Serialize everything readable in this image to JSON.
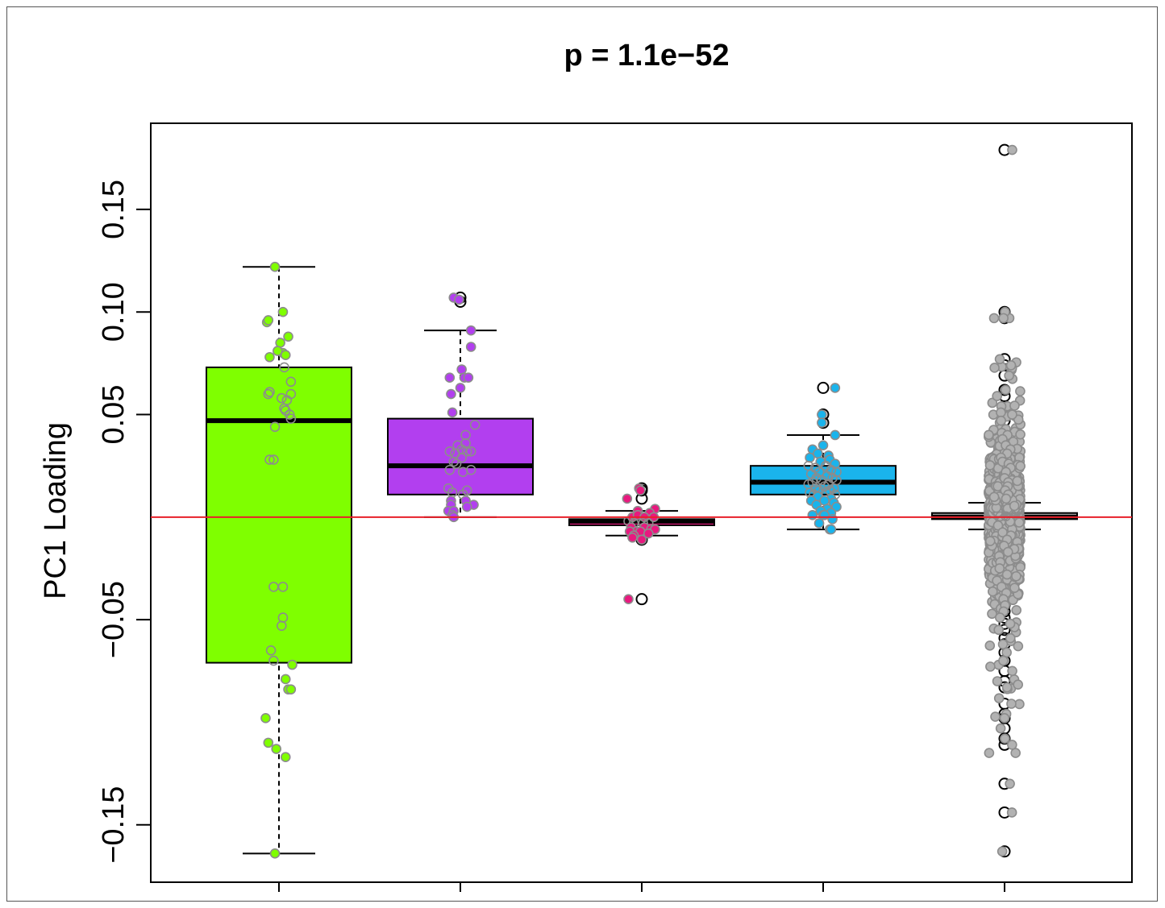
{
  "chart_data": {
    "type": "box",
    "title": "p = 1.1e−52",
    "xlabel": "",
    "ylabel": "PC1 Loading",
    "ylim": [
      -0.178,
      0.192
    ],
    "yticks": [
      0.15,
      0.1,
      0.05,
      -0.05,
      -0.15
    ],
    "ytick_labels": [
      "0.15",
      "0.10",
      "0.05",
      "−0.05",
      "−0.15"
    ],
    "reference_line": {
      "y": 0.0,
      "color": "#e8202a"
    },
    "grid": false,
    "legend": "none",
    "groups": [
      {
        "color": "#7fff00",
        "point_color": "#7fff00",
        "box": {
          "q1": -0.071,
          "median": 0.047,
          "q3": 0.073,
          "whisker_low": -0.164,
          "whisker_high": 0.122
        },
        "outliers": [],
        "points": [
          [
            -0.003,
            0.122
          ],
          [
            -0.009,
            0.095
          ],
          [
            -0.008,
            0.096
          ],
          [
            0.003,
            0.1
          ],
          [
            0.001,
            0.085
          ],
          [
            0.007,
            0.088
          ],
          [
            -0.007,
            0.078
          ],
          [
            0.003,
            0.08
          ],
          [
            -0.001,
            0.081
          ],
          [
            0.005,
            0.079
          ],
          [
            0.004,
            0.073
          ],
          [
            -0.007,
            0.061
          ],
          [
            -0.008,
            0.06
          ],
          [
            0.009,
            0.066
          ],
          [
            0.002,
            0.058
          ],
          [
            0.009,
            0.06
          ],
          [
            0.006,
            0.057
          ],
          [
            0.004,
            0.053
          ],
          [
            0.005,
            0.052
          ],
          [
            0.008,
            0.05
          ],
          [
            0.009,
            0.048
          ],
          [
            -0.003,
            0.044
          ],
          [
            -0.007,
            0.028
          ],
          [
            -0.004,
            0.028
          ],
          [
            -0.004,
            -0.034
          ],
          [
            0.003,
            -0.034
          ],
          [
            0.003,
            -0.049
          ],
          [
            0.002,
            -0.053
          ],
          [
            -0.006,
            -0.065
          ],
          [
            -0.004,
            -0.07
          ],
          [
            0.01,
            -0.072
          ],
          [
            0.005,
            -0.079
          ],
          [
            0.007,
            -0.084
          ],
          [
            0.009,
            -0.084
          ],
          [
            -0.01,
            -0.098
          ],
          [
            -0.008,
            -0.11
          ],
          [
            -0.002,
            -0.113
          ],
          [
            0.005,
            -0.117
          ],
          [
            -0.003,
            -0.164
          ]
        ]
      },
      {
        "color": "#b23fef",
        "point_color": "#b23fef",
        "box": {
          "q1": 0.011,
          "median": 0.025,
          "q3": 0.048,
          "whisker_low": 0.0,
          "whisker_high": 0.091
        },
        "outliers": [
          0.107,
          0.105
        ],
        "points": [
          [
            -0.005,
            0.107
          ],
          [
            -0.001,
            0.106
          ],
          [
            0.008,
            0.091
          ],
          [
            0.008,
            0.083
          ],
          [
            0.001,
            0.072
          ],
          [
            -0.008,
            0.068
          ],
          [
            0.003,
            0.068
          ],
          [
            0.006,
            0.068
          ],
          [
            -0.007,
            0.06
          ],
          [
            0.0,
            0.063
          ],
          [
            -0.006,
            0.051
          ],
          [
            0.011,
            0.045
          ],
          [
            0.004,
            0.04
          ],
          [
            0.004,
            0.036
          ],
          [
            -0.002,
            0.035
          ],
          [
            0.001,
            0.033
          ],
          [
            -0.008,
            0.032
          ],
          [
            0.008,
            0.032
          ],
          [
            0.005,
            0.032
          ],
          [
            -0.004,
            0.031
          ],
          [
            0.001,
            0.029
          ],
          [
            -0.005,
            0.027
          ],
          [
            -0.003,
            0.026
          ],
          [
            0.008,
            0.023
          ],
          [
            -0.008,
            0.023
          ],
          [
            0.002,
            0.022
          ],
          [
            -0.009,
            0.014
          ],
          [
            0.005,
            0.013
          ],
          [
            -0.006,
            0.012
          ],
          [
            0.002,
            0.011
          ],
          [
            -0.007,
            0.008
          ],
          [
            0.004,
            0.008
          ],
          [
            -0.007,
            0.006
          ],
          [
            0.01,
            0.006
          ],
          [
            0.005,
            0.005
          ],
          [
            -0.009,
            0.003
          ],
          [
            -0.005,
            0.003
          ],
          [
            -0.006,
            0.001
          ],
          [
            -0.005,
            0.0
          ]
        ]
      },
      {
        "color": "#e8197f",
        "point_color": "#e8197f",
        "box": {
          "q1": -0.004,
          "median": -0.002,
          "q3": -0.001,
          "whisker_low": -0.009,
          "whisker_high": 0.003
        },
        "outliers": [
          0.014,
          0.013,
          0.009,
          -0.011,
          -0.04
        ],
        "points": [
          [
            -0.002,
            0.014
          ],
          [
            -0.001,
            0.013
          ],
          [
            -0.011,
            0.009
          ],
          [
            -0.003,
            0.003
          ],
          [
            0.01,
            0.004
          ],
          [
            0.006,
            0.002
          ],
          [
            -0.007,
            0.0
          ],
          [
            -0.003,
            0.001
          ],
          [
            0.002,
            0.0
          ],
          [
            0.009,
            0.0
          ],
          [
            -0.01,
            -0.002
          ],
          [
            -0.006,
            -0.003
          ],
          [
            0.001,
            -0.003
          ],
          [
            0.005,
            -0.003
          ],
          [
            -0.008,
            -0.005
          ],
          [
            0.002,
            -0.005
          ],
          [
            0.007,
            -0.006
          ],
          [
            -0.004,
            -0.007
          ],
          [
            0.01,
            -0.006
          ],
          [
            -0.009,
            -0.007
          ],
          [
            -0.001,
            -0.007
          ],
          [
            0.005,
            -0.008
          ],
          [
            -0.006,
            -0.009
          ],
          [
            -0.007,
            -0.01
          ],
          [
            0.0,
            -0.011
          ],
          [
            -0.01,
            -0.04
          ]
        ]
      },
      {
        "color": "#1ab4ec",
        "point_color": "#1ab4ec",
        "box": {
          "q1": 0.011,
          "median": 0.017,
          "q3": 0.025,
          "whisker_low": -0.006,
          "whisker_high": 0.04
        },
        "outliers": [
          0.063,
          0.05,
          0.046
        ],
        "points": [
          [
            0.009,
            0.063
          ],
          [
            -0.001,
            0.05
          ],
          [
            -0.001,
            0.046
          ],
          [
            0.009,
            0.04
          ],
          [
            0.0,
            0.035
          ],
          [
            -0.008,
            0.033
          ],
          [
            -0.004,
            0.031
          ],
          [
            0.004,
            0.03
          ],
          [
            -0.01,
            0.029
          ],
          [
            0.005,
            0.028
          ],
          [
            -0.002,
            0.027
          ],
          [
            0.009,
            0.026
          ],
          [
            -0.011,
            0.025
          ],
          [
            0.002,
            0.025
          ],
          [
            -0.006,
            0.024
          ],
          [
            0.006,
            0.023
          ],
          [
            -0.003,
            0.022
          ],
          [
            0.01,
            0.022
          ],
          [
            -0.009,
            0.021
          ],
          [
            0.003,
            0.02
          ],
          [
            -0.005,
            0.019
          ],
          [
            0.007,
            0.019
          ],
          [
            -0.001,
            0.018
          ],
          [
            0.01,
            0.018
          ],
          [
            -0.008,
            0.017
          ],
          [
            0.004,
            0.016
          ],
          [
            -0.011,
            0.016
          ],
          [
            0.001,
            0.015
          ],
          [
            -0.006,
            0.014
          ],
          [
            0.008,
            0.014
          ],
          [
            -0.003,
            0.013
          ],
          [
            0.005,
            0.013
          ],
          [
            -0.01,
            0.012
          ],
          [
            0.002,
            0.012
          ],
          [
            -0.007,
            0.011
          ],
          [
            0.009,
            0.011
          ],
          [
            -0.004,
            0.01
          ],
          [
            0.006,
            0.009
          ],
          [
            -0.009,
            0.008
          ],
          [
            0.001,
            0.008
          ],
          [
            0.008,
            0.007
          ],
          [
            -0.005,
            0.006
          ],
          [
            0.01,
            0.005
          ],
          [
            0.003,
            0.004
          ],
          [
            -0.002,
            0.003
          ],
          [
            0.006,
            0.002
          ],
          [
            -0.008,
            0.001
          ],
          [
            0.0,
            0.001
          ],
          [
            0.001,
            0.001
          ],
          [
            0.007,
            -0.001
          ],
          [
            -0.003,
            -0.003
          ],
          [
            0.005,
            -0.006
          ],
          [
            0.006,
            -0.006
          ]
        ]
      },
      {
        "color": "#b2b2b2",
        "point_color": "#b2b2b2",
        "box": {
          "q1": -0.001,
          "median": 0.0,
          "q3": 0.002,
          "whisker_low": -0.006,
          "whisker_high": 0.007
        },
        "outliers": [
          0.179,
          0.1,
          0.097,
          0.077,
          0.074,
          0.069,
          0.062,
          0.059,
          0.054,
          0.051,
          0.05,
          0.047,
          0.04,
          0.038,
          0.035,
          0.033,
          0.031,
          0.029,
          0.027,
          0.026,
          0.024,
          0.022,
          0.019,
          0.017,
          0.015,
          0.013,
          0.011,
          0.009,
          -0.009,
          -0.011,
          -0.014,
          -0.017,
          -0.019,
          -0.022,
          -0.025,
          -0.028,
          -0.031,
          -0.034,
          -0.037,
          -0.04,
          -0.043,
          -0.046,
          -0.049,
          -0.052,
          -0.055,
          -0.059,
          -0.062,
          -0.066,
          -0.07,
          -0.075,
          -0.08,
          -0.083,
          -0.091,
          -0.096,
          -0.098,
          -0.103,
          -0.108,
          -0.111,
          -0.13,
          -0.144,
          -0.163
        ],
        "points_spread": {
          "count": 900,
          "y_center": 0.0,
          "y_sd": 0.03,
          "x_jitter": 0.012
        }
      }
    ]
  }
}
